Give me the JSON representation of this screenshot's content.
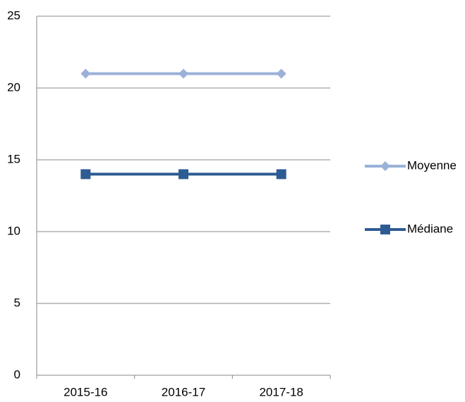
{
  "chart_data": {
    "type": "line",
    "categories": [
      "2015-16",
      "2016-17",
      "2017-18"
    ],
    "series": [
      {
        "name": "Moyenne",
        "color": "#9bb1d8",
        "marker": "diamond",
        "values": [
          21,
          21,
          21
        ]
      },
      {
        "name": "Médiane",
        "color": "#2e5b92",
        "marker": "square",
        "values": [
          14,
          14,
          14
        ]
      }
    ],
    "ylim": [
      0,
      25
    ],
    "yticks": [
      0,
      5,
      10,
      15,
      20,
      25
    ],
    "grid": true,
    "legend": "right"
  }
}
